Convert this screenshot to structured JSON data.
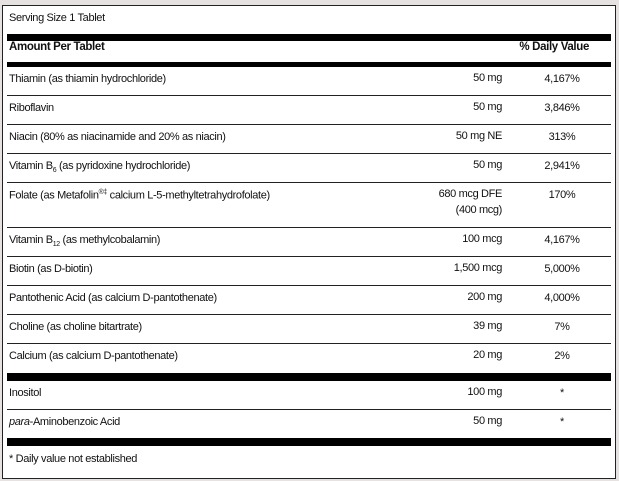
{
  "serving_size": "Serving Size 1 Tablet",
  "header": {
    "amount": "Amount Per Tablet",
    "daily_value": "% Daily Value"
  },
  "nutrients": [
    {
      "name": "Thiamin (as thiamin hydrochloride)",
      "amount": "50 mg",
      "dv": "4,167%"
    },
    {
      "name": "Riboflavin",
      "amount": "50 mg",
      "dv": "3,846%"
    },
    {
      "name": "Niacin (80% as niacinamide and 20% as niacin)",
      "amount": "50 mg NE",
      "dv": "313%"
    },
    {
      "name_pre": "Vitamin B",
      "name_sub": "6",
      "name_post": " (as pyridoxine hydrochloride)",
      "amount": "50 mg",
      "dv": "2,941%"
    },
    {
      "name_pre": "Folate (as Metafolin",
      "name_sup": "®‡",
      "name_post": " calcium L-5-methyltetrahydrofolate)",
      "amount": "680 mcg DFE",
      "amount2": "(400 mcg)",
      "dv": "170%"
    },
    {
      "name_pre": "Vitamin B",
      "name_sub": "12",
      "name_post": " (as methylcobalamin)",
      "amount": "100 mcg",
      "dv": "4,167%"
    },
    {
      "name": "Biotin (as D-biotin)",
      "amount": "1,500 mcg",
      "dv": "5,000%"
    },
    {
      "name": "Pantothenic Acid (as calcium D-pantothenate)",
      "amount": "200 mg",
      "dv": "4,000%"
    },
    {
      "name": "Choline (as choline bitartrate)",
      "amount": "39 mg",
      "dv": "7%"
    },
    {
      "name": "Calcium (as calcium D-pantothenate)",
      "amount": "20 mg",
      "dv": "2%"
    }
  ],
  "other": [
    {
      "name": "Inositol",
      "amount": "100 mg",
      "dv": "*"
    },
    {
      "name_italic": "para",
      "name_post": "-Aminobenzoic Acid",
      "amount": "50 mg",
      "dv": "*"
    }
  ],
  "footnote": "* Daily value not established"
}
